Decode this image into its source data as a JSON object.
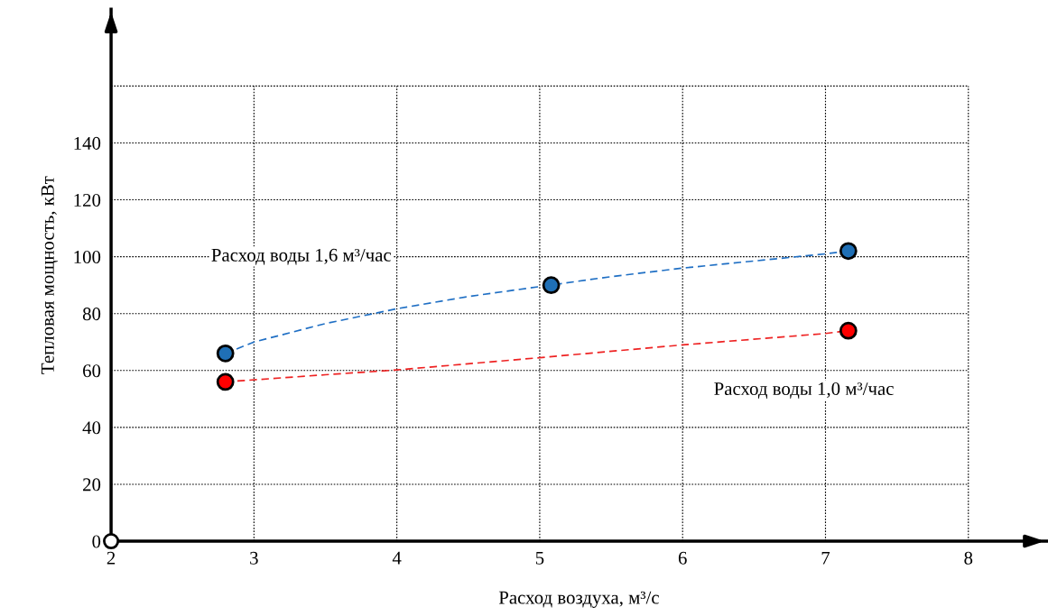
{
  "chart_data": {
    "type": "scatter",
    "xlabel": "Расход воздуха, м³/с",
    "ylabel": "Тепловая мощность, кВт",
    "xlim": [
      2,
      8.55
    ],
    "ylim": [
      0,
      187
    ],
    "xticks": [
      2,
      3,
      4,
      5,
      6,
      7,
      8
    ],
    "yticks": [
      0,
      20,
      40,
      60,
      80,
      100,
      120,
      140,
      {
        "value": 160,
        "label": null
      }
    ],
    "grid": true,
    "marker": "circle",
    "series": [
      {
        "type": "line",
        "marker": "none",
        "name": "Расход воды 1,6 м³/час",
        "line_style": "dashed",
        "color": "#1f6fc4",
        "x": [
          2.8,
          3,
          3.5,
          4,
          4.5,
          5,
          5.5,
          6,
          6.5,
          7,
          7.16
        ],
        "values": [
          66,
          70,
          76.5,
          81.7,
          86,
          89.5,
          93,
          96,
          98.5,
          101,
          102
        ]
      },
      {
        "type": "line",
        "marker": "none",
        "name": "Расход воды 1,0 м³/час",
        "line_style": "dashed",
        "color": "#ee2222",
        "x": [
          2.8,
          3.5,
          4,
          5,
          6,
          7,
          7.16
        ],
        "values": [
          56,
          58.5,
          60.2,
          64.5,
          69,
          73,
          74
        ]
      },
      {
        "color": "#1f6fb5",
        "x": [
          2.8,
          5.08,
          7.16
        ],
        "values": [
          66,
          90,
          102
        ]
      },
      {
        "color": "#ff0000",
        "x": [
          2.8,
          7.16
        ],
        "values": [
          56,
          74
        ]
      }
    ]
  }
}
